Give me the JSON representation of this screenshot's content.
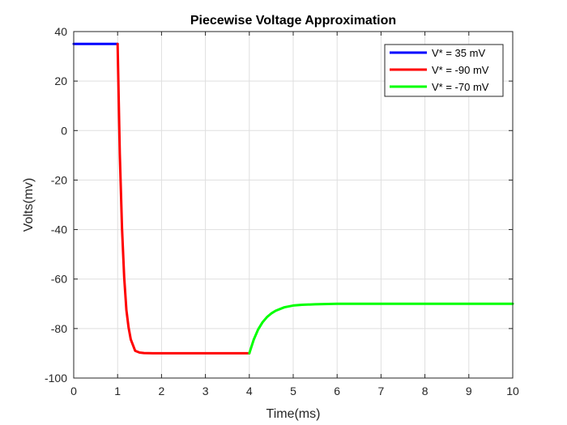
{
  "chart_data": {
    "type": "line",
    "title": "Piecewise Voltage Approximation",
    "xlabel": "Time(ms)",
    "ylabel": "Volts(mv)",
    "xlim": [
      0,
      10
    ],
    "ylim": [
      -100,
      40
    ],
    "xticks": [
      0,
      1,
      2,
      3,
      4,
      5,
      6,
      7,
      8,
      9,
      10
    ],
    "yticks": [
      40,
      20,
      0,
      -20,
      -40,
      -60,
      -80,
      -100
    ],
    "grid": true,
    "legend_position": "top-right",
    "series": [
      {
        "name": "V* = 35 mV",
        "color": "#0000ff",
        "x": [
          0,
          1
        ],
        "y": [
          35,
          35
        ]
      },
      {
        "name": "V* = -90 mV",
        "color": "#ff0000",
        "x": [
          1,
          1.05,
          1.1,
          1.15,
          1.2,
          1.25,
          1.3,
          1.4,
          1.5,
          1.6,
          1.7,
          1.8,
          2.0,
          2.5,
          3.0,
          3.5,
          4.0
        ],
        "y": [
          35,
          -9.6,
          -39.3,
          -59.4,
          -72.5,
          -79.6,
          -84.4,
          -89.0,
          -89.7,
          -89.9,
          -89.95,
          -90,
          -90,
          -90,
          -90,
          -90,
          -90
        ]
      },
      {
        "name": "V* = -70 mV",
        "color": "#00ff00",
        "x": [
          4,
          4.1,
          4.2,
          4.3,
          4.4,
          4.5,
          4.6,
          4.8,
          5.0,
          5.2,
          5.5,
          6.0,
          7.0,
          8.0,
          9.0,
          10.0
        ],
        "y": [
          -90,
          -84.5,
          -80.4,
          -77.5,
          -75.4,
          -73.9,
          -72.8,
          -71.4,
          -70.7,
          -70.4,
          -70.2,
          -70,
          -70,
          -70,
          -70,
          -70
        ]
      }
    ]
  }
}
